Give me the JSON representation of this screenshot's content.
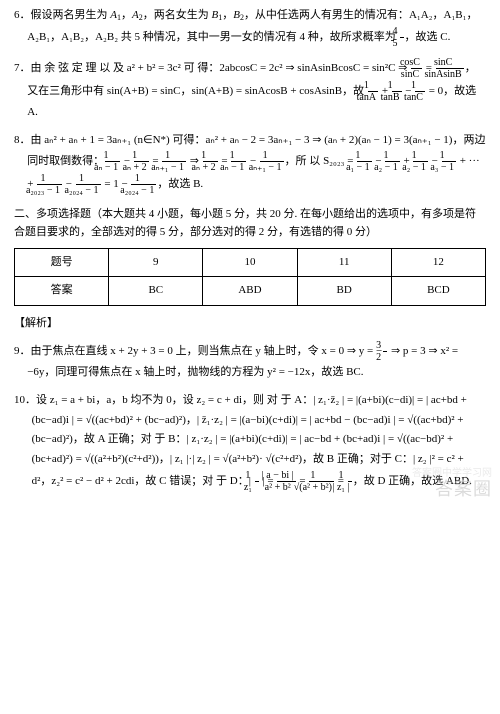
{
  "colors": {
    "text": "#000000",
    "bg": "#ffffff",
    "border": "#000000",
    "watermark": "#cccccc"
  },
  "typography": {
    "base_fontsize": 11,
    "fraction_fontsize": 10,
    "sub_fontsize": 8
  },
  "q6": {
    "num": "6．",
    "line1a": "假设两名男生为 ",
    "a1": "A",
    "a1s": "1",
    "sep": "，",
    "a2": "A",
    "a2s": "2",
    "line1b": "，两名女生为 ",
    "b1": "B",
    "b1s": "1",
    "b2": "B",
    "b2s": "2",
    "line1c": "，从中任选两人有男生的情况有：",
    "pairs": "A₁A₂，A₁B₁，A₂B₁，A₁B₂，A₂B₂ 共 5 种情况，其中一男一女的情况有 4 种，故所求概率为 ",
    "frac_n": "4",
    "frac_d": "5",
    "tail": "，故选 C."
  },
  "q7": {
    "num": "7．",
    "l1": "由 余 弦 定 理 以 及 a² + b² = 3c² 可 得：2abcosC = 2c² ⇒ sinAsinBcosC = sin²C ⇒ ",
    "f1n": "cosC",
    "f1d": "sinC",
    "eq": " = ",
    "f2n": "sinC",
    "f2d": "sinAsinB",
    "l2": "，又在三角形中有 sin(A+B) = sinC，sin(A+B) = sinAcosB + cosAsinB，故",
    "f3n": "1",
    "f3d": "tanA",
    "plus": " + ",
    "f4n": "1",
    "f4d": "tanB",
    "minus": " − ",
    "f5n": "1",
    "f5d": "tanC",
    "l3": " = 0，故选 A."
  },
  "q8": {
    "num": "8．",
    "l1": "由 aₙ² + aₙ + 1 = 3aₙ₊₁ (n∈N*) 可得：aₙ² + aₙ − 2 = 3aₙ₊₁ − 3 ⇒ (aₙ + 2)(aₙ − 1) = 3(aₙ₊₁ − 1)，两边",
    "l2a": "同时取倒数得：",
    "f1n": "1",
    "f1d": "aₙ − 1",
    "m1": " − ",
    "f2n": "1",
    "f2d": "aₙ + 2",
    "eq1": " = ",
    "f3n": "1",
    "f3d": "aₙ₊₁ − 1",
    "arr": " ⇒ ",
    "f4n": "1",
    "f4d": "aₙ + 2",
    "eq2": " = ",
    "f5n": "1",
    "f5d": "aₙ − 1",
    "m2": " − ",
    "f6n": "1",
    "f6d": "aₙ₊₁ − 1",
    "l2b": "，所 以 ",
    "s": "S₂₀₂₃",
    "eq3": " = ",
    "f7n": "1",
    "f7d": "a₁ − 1",
    "m3": " − ",
    "f8n": "1",
    "f8d": "a₂ − 1",
    "p1": " + ",
    "f9n": "1",
    "f9d": "a₂ − 1",
    "m4": " − ",
    "f10n": "1",
    "f10d": "a₃ − 1",
    "dots": " + ··· + ",
    "f11n": "1",
    "f11d": "a₂₀₂₃ − 1",
    "m5": " − ",
    "f12n": "1",
    "f12d": "a₂₀₂₄ − 1",
    "eq4": " = 1 − ",
    "f13n": "1",
    "f13d": "a₂₀₂₄ − 1",
    "tail": "，故选 B."
  },
  "section2": {
    "title": "二、多项选择题（本大题共 4 小题，每小题 5 分，共 20 分. 在每小题给出的选项中，有多项是符合题目要求的，全部选对的得 5 分，部分选对的得 2 分，有选错的得 0 分）",
    "table": {
      "header": [
        "题号",
        "9",
        "10",
        "11",
        "12"
      ],
      "row": [
        "答案",
        "BC",
        "ABD",
        "BD",
        "BCD"
      ]
    }
  },
  "jiexi": "【解析】",
  "q9": {
    "num": "9．",
    "l1": "由于焦点在直线 x + 2y + 3 = 0 上，则当焦点在 y 轴上时，令 x = 0 ⇒ y = −",
    "f1n": "3",
    "f1d": "2",
    "l2": " ⇒ p = 3 ⇒ ",
    "l3": "x² = −6y，同理可得焦点在 x 轴上时，抛物线的方程为 y² = −12x，故选 BC."
  },
  "q10": {
    "num": "10．",
    "l1": "设 z₁ = a + bi，a，b 均不为 0，设 z₂ = c + di，则 对 于 A：| z₁·z̄₂ | = |(a+bi)(c−di)|",
    "l2": "= | ac+bd + (bc−ad)i | = √((ac+bd)² + (bc−ad)²)，| z̄₁·z₂ | = |(a−bi)(c+di)| = | ac+bd −",
    "l3": "(bc−ad)i | = √((ac+bd)² + (bc−ad)²)，故 A 正确；对 于 B：| z₁·z₂ | = |(a+bi)(c+di)|",
    "l4": "= | ac−bd + (bc+ad)i | = √((ac−bd)² + (bc+ad)²) = √((a²+b²)(c²+d²))，| z₁ |·| z₂ | = √(a²+b²)·",
    "l5": "√(c²+d²)，故 B 正确；对于 C：| z₂ |² = c² + d²，z₂² = c² − d² + 2cdi，故 C 错误；对 于",
    "l6a": "D：",
    "dfL": "| ",
    "df1n": "1",
    "df1d": "z₁",
    "dfR": " |",
    "eqA": " = ",
    "df2nL": "| ",
    "df2n": "a − bi",
    "df2nR": " |",
    "df2d": "a² + b²",
    "eqB": " = ",
    "df3n": "1",
    "df3d": "√(a² + b²)",
    "eqC": " = ",
    "df4n": "1",
    "df4d": "| z₁ |",
    "tail": "，故 D 正确，故选 ABD."
  },
  "watermark": {
    "main": "答案圈",
    "sub": "答案圈中学学习网"
  }
}
